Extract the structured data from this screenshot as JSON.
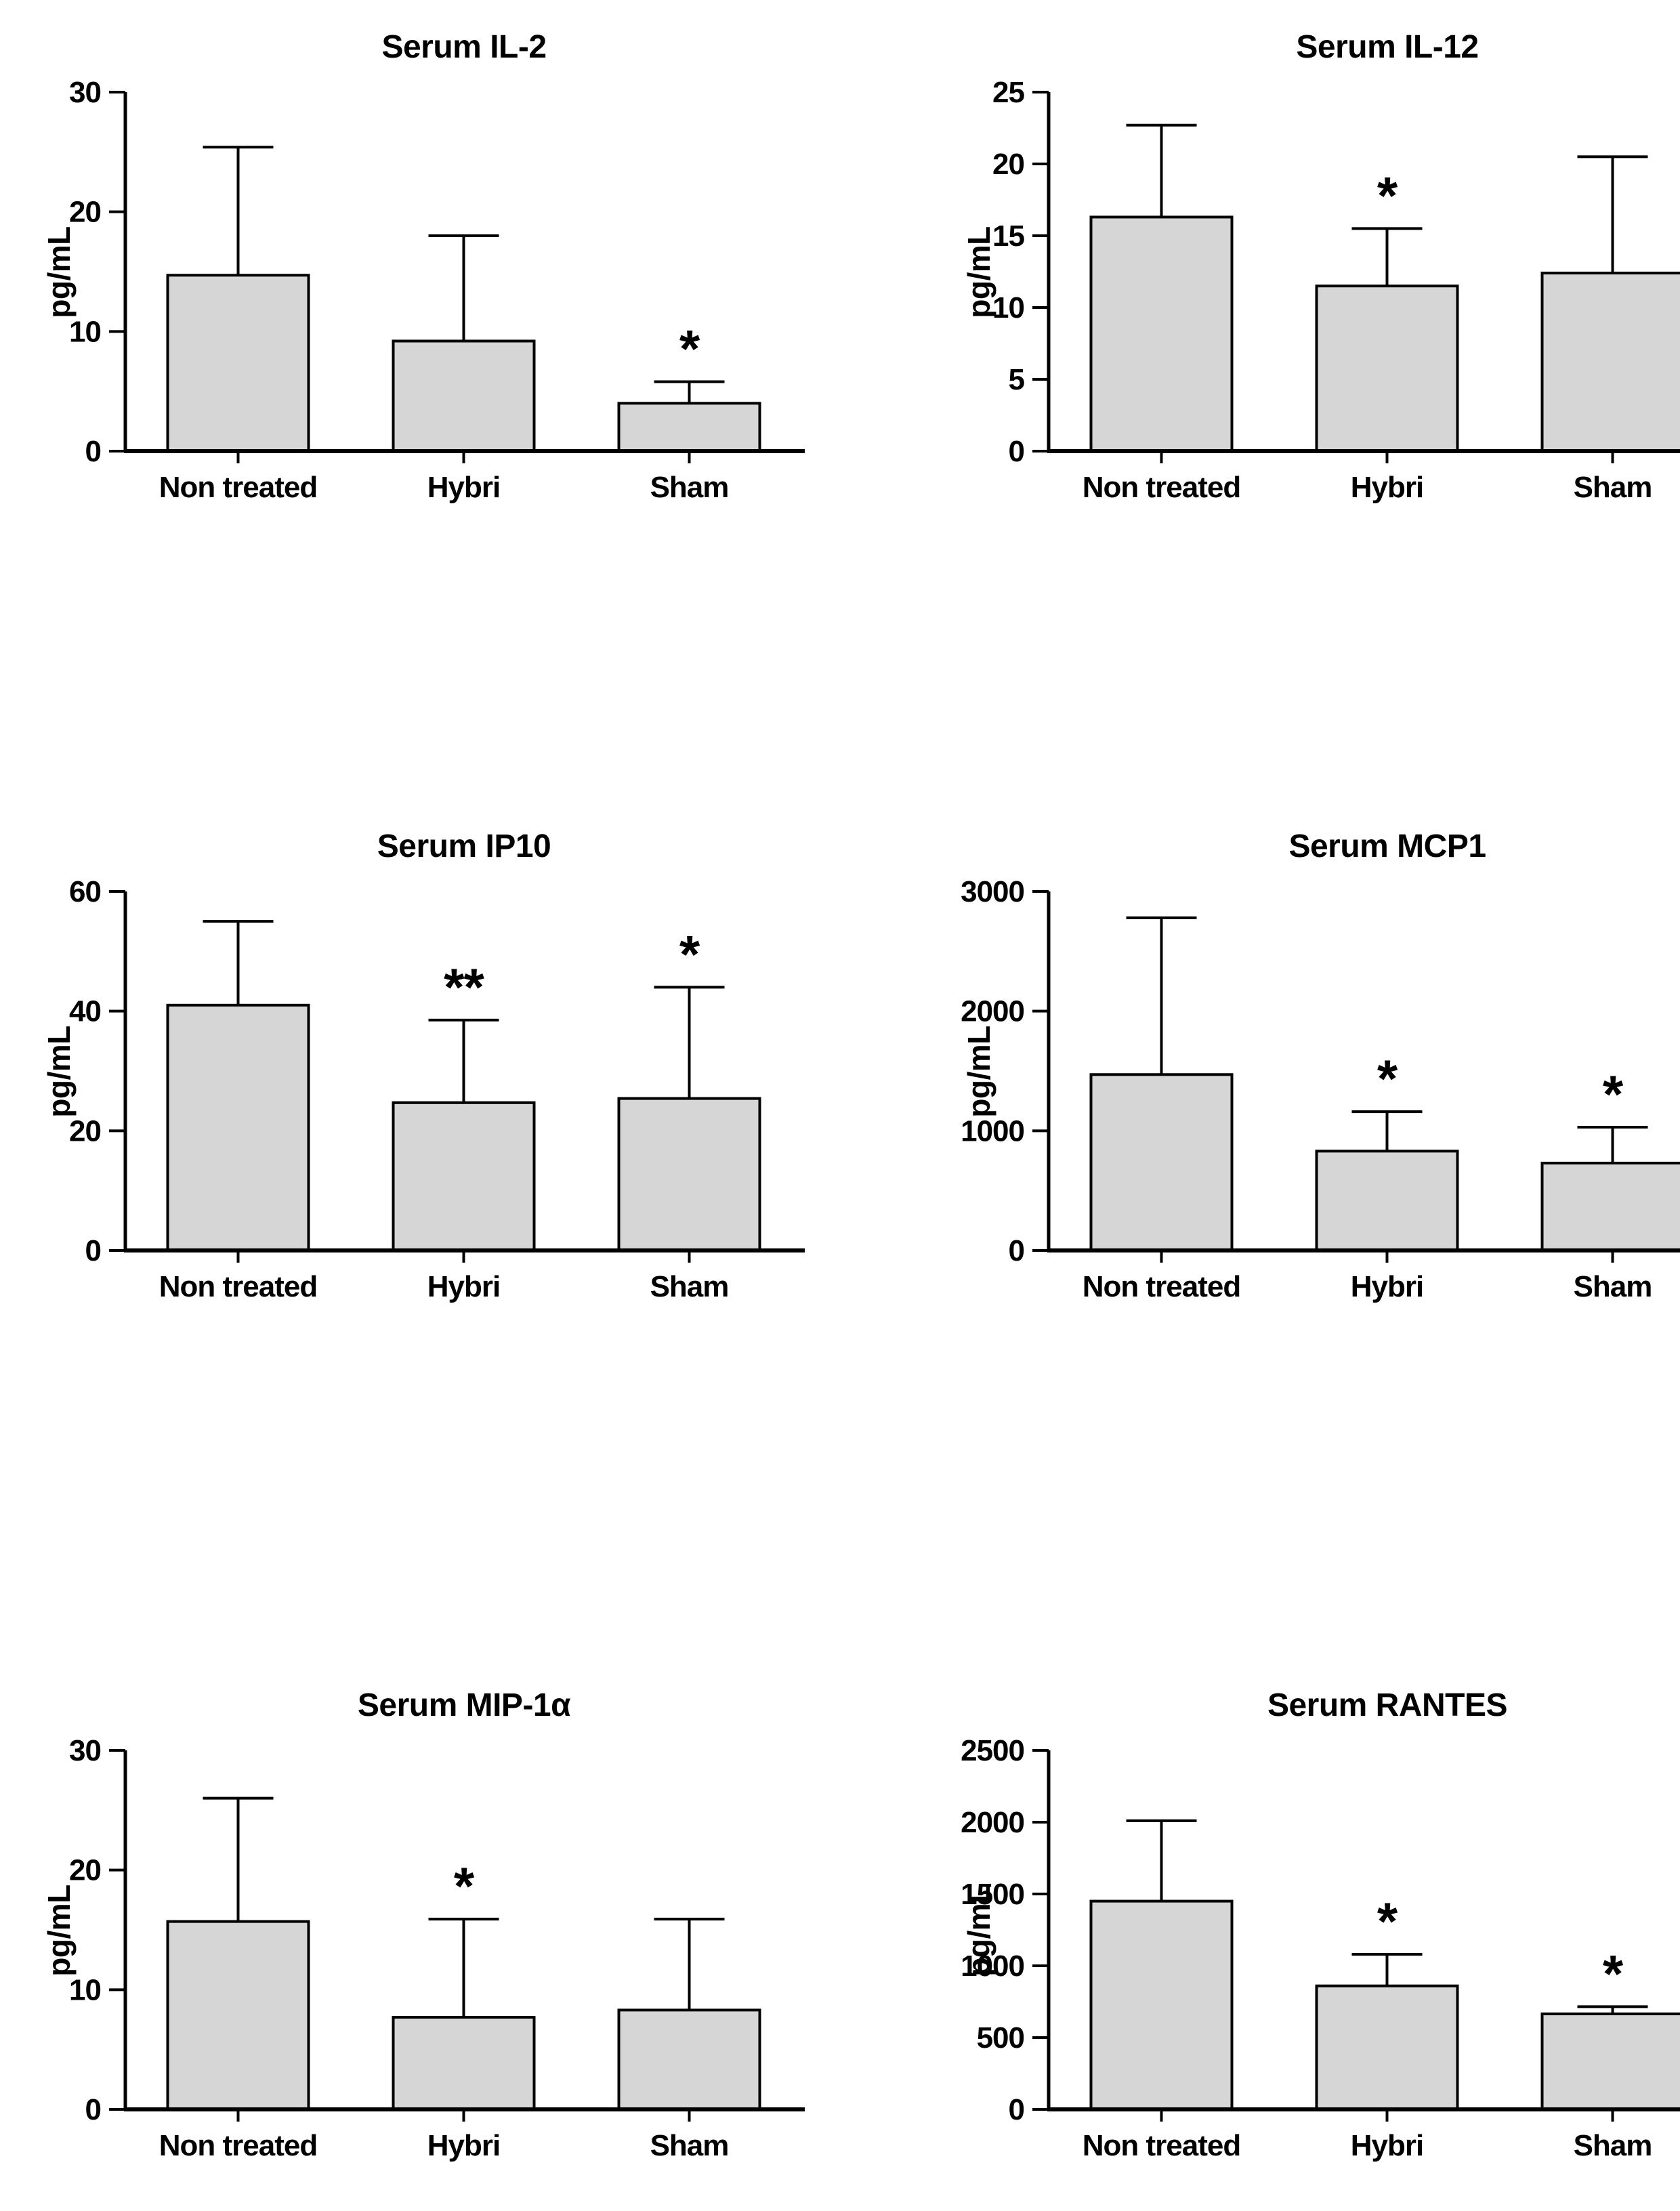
{
  "figure": {
    "background": "#ffffff",
    "bar_fill": "#d6d6d6",
    "bar_stroke": "#000000",
    "axis_color": "#000000",
    "unit_label": "pg/mL",
    "group_labels": [
      "Non treated",
      "Hybri",
      "Sham"
    ]
  },
  "chart_data": [
    {
      "type": "bar",
      "title": "Serum IL-2",
      "ylabel": "pg/mL",
      "categories": [
        "Non treated",
        "Hybri",
        "Sham"
      ],
      "values": [
        14.7,
        9.2,
        4.0
      ],
      "errors_plus": [
        10.7,
        8.8,
        1.8
      ],
      "significance": [
        "",
        "",
        "*"
      ],
      "ylim": [
        0,
        30
      ],
      "yticks": [
        0,
        10,
        20,
        30
      ],
      "grid": false,
      "legend": "none"
    },
    {
      "type": "bar",
      "title": "Serum IL-12",
      "ylabel": "pg/mL",
      "categories": [
        "Non treated",
        "Hybri",
        "Sham"
      ],
      "values": [
        16.3,
        11.5,
        12.4
      ],
      "errors_plus": [
        6.4,
        4.0,
        8.1
      ],
      "significance": [
        "",
        "*",
        ""
      ],
      "ylim": [
        0,
        25
      ],
      "yticks": [
        0,
        5,
        10,
        15,
        20,
        25
      ],
      "grid": false,
      "legend": "none"
    },
    {
      "type": "bar",
      "title": "Serum IP10",
      "ylabel": "pg/mL",
      "categories": [
        "Non treated",
        "Hybri",
        "Sham"
      ],
      "values": [
        41.0,
        24.7,
        25.4
      ],
      "errors_plus": [
        14.0,
        13.8,
        18.6
      ],
      "significance": [
        "",
        "**",
        "*"
      ],
      "ylim": [
        0,
        60
      ],
      "yticks": [
        0,
        20,
        40,
        60
      ],
      "grid": false,
      "legend": "none"
    },
    {
      "type": "bar",
      "title": "Serum MCP1",
      "ylabel": "pg/mL",
      "categories": [
        "Non treated",
        "Hybri",
        "Sham"
      ],
      "values": [
        1470,
        830,
        730
      ],
      "errors_plus": [
        1310,
        330,
        300
      ],
      "significance": [
        "",
        "*",
        "*"
      ],
      "ylim": [
        0,
        3000
      ],
      "yticks": [
        0,
        1000,
        2000,
        3000
      ],
      "grid": false,
      "legend": "none"
    },
    {
      "type": "bar",
      "title": "Serum MIP-1α",
      "ylabel": "pg/mL",
      "categories": [
        "Non treated",
        "Hybri",
        "Sham"
      ],
      "values": [
        15.7,
        7.7,
        8.3
      ],
      "errors_plus": [
        10.3,
        8.2,
        7.6
      ],
      "significance": [
        "",
        "*",
        ""
      ],
      "ylim": [
        0,
        30
      ],
      "yticks": [
        0,
        10,
        20,
        30
      ],
      "grid": false,
      "legend": "none"
    },
    {
      "type": "bar",
      "title": "Serum RANTES",
      "ylabel": "pg/mL",
      "categories": [
        "Non treated",
        "Hybri",
        "Sham"
      ],
      "values": [
        1450,
        860,
        665
      ],
      "errors_plus": [
        560,
        220,
        50
      ],
      "significance": [
        "",
        "*",
        "*"
      ],
      "ylim": [
        0,
        2500
      ],
      "yticks": [
        0,
        500,
        1000,
        1500,
        2000,
        2500
      ],
      "grid": false,
      "legend": "none"
    }
  ]
}
